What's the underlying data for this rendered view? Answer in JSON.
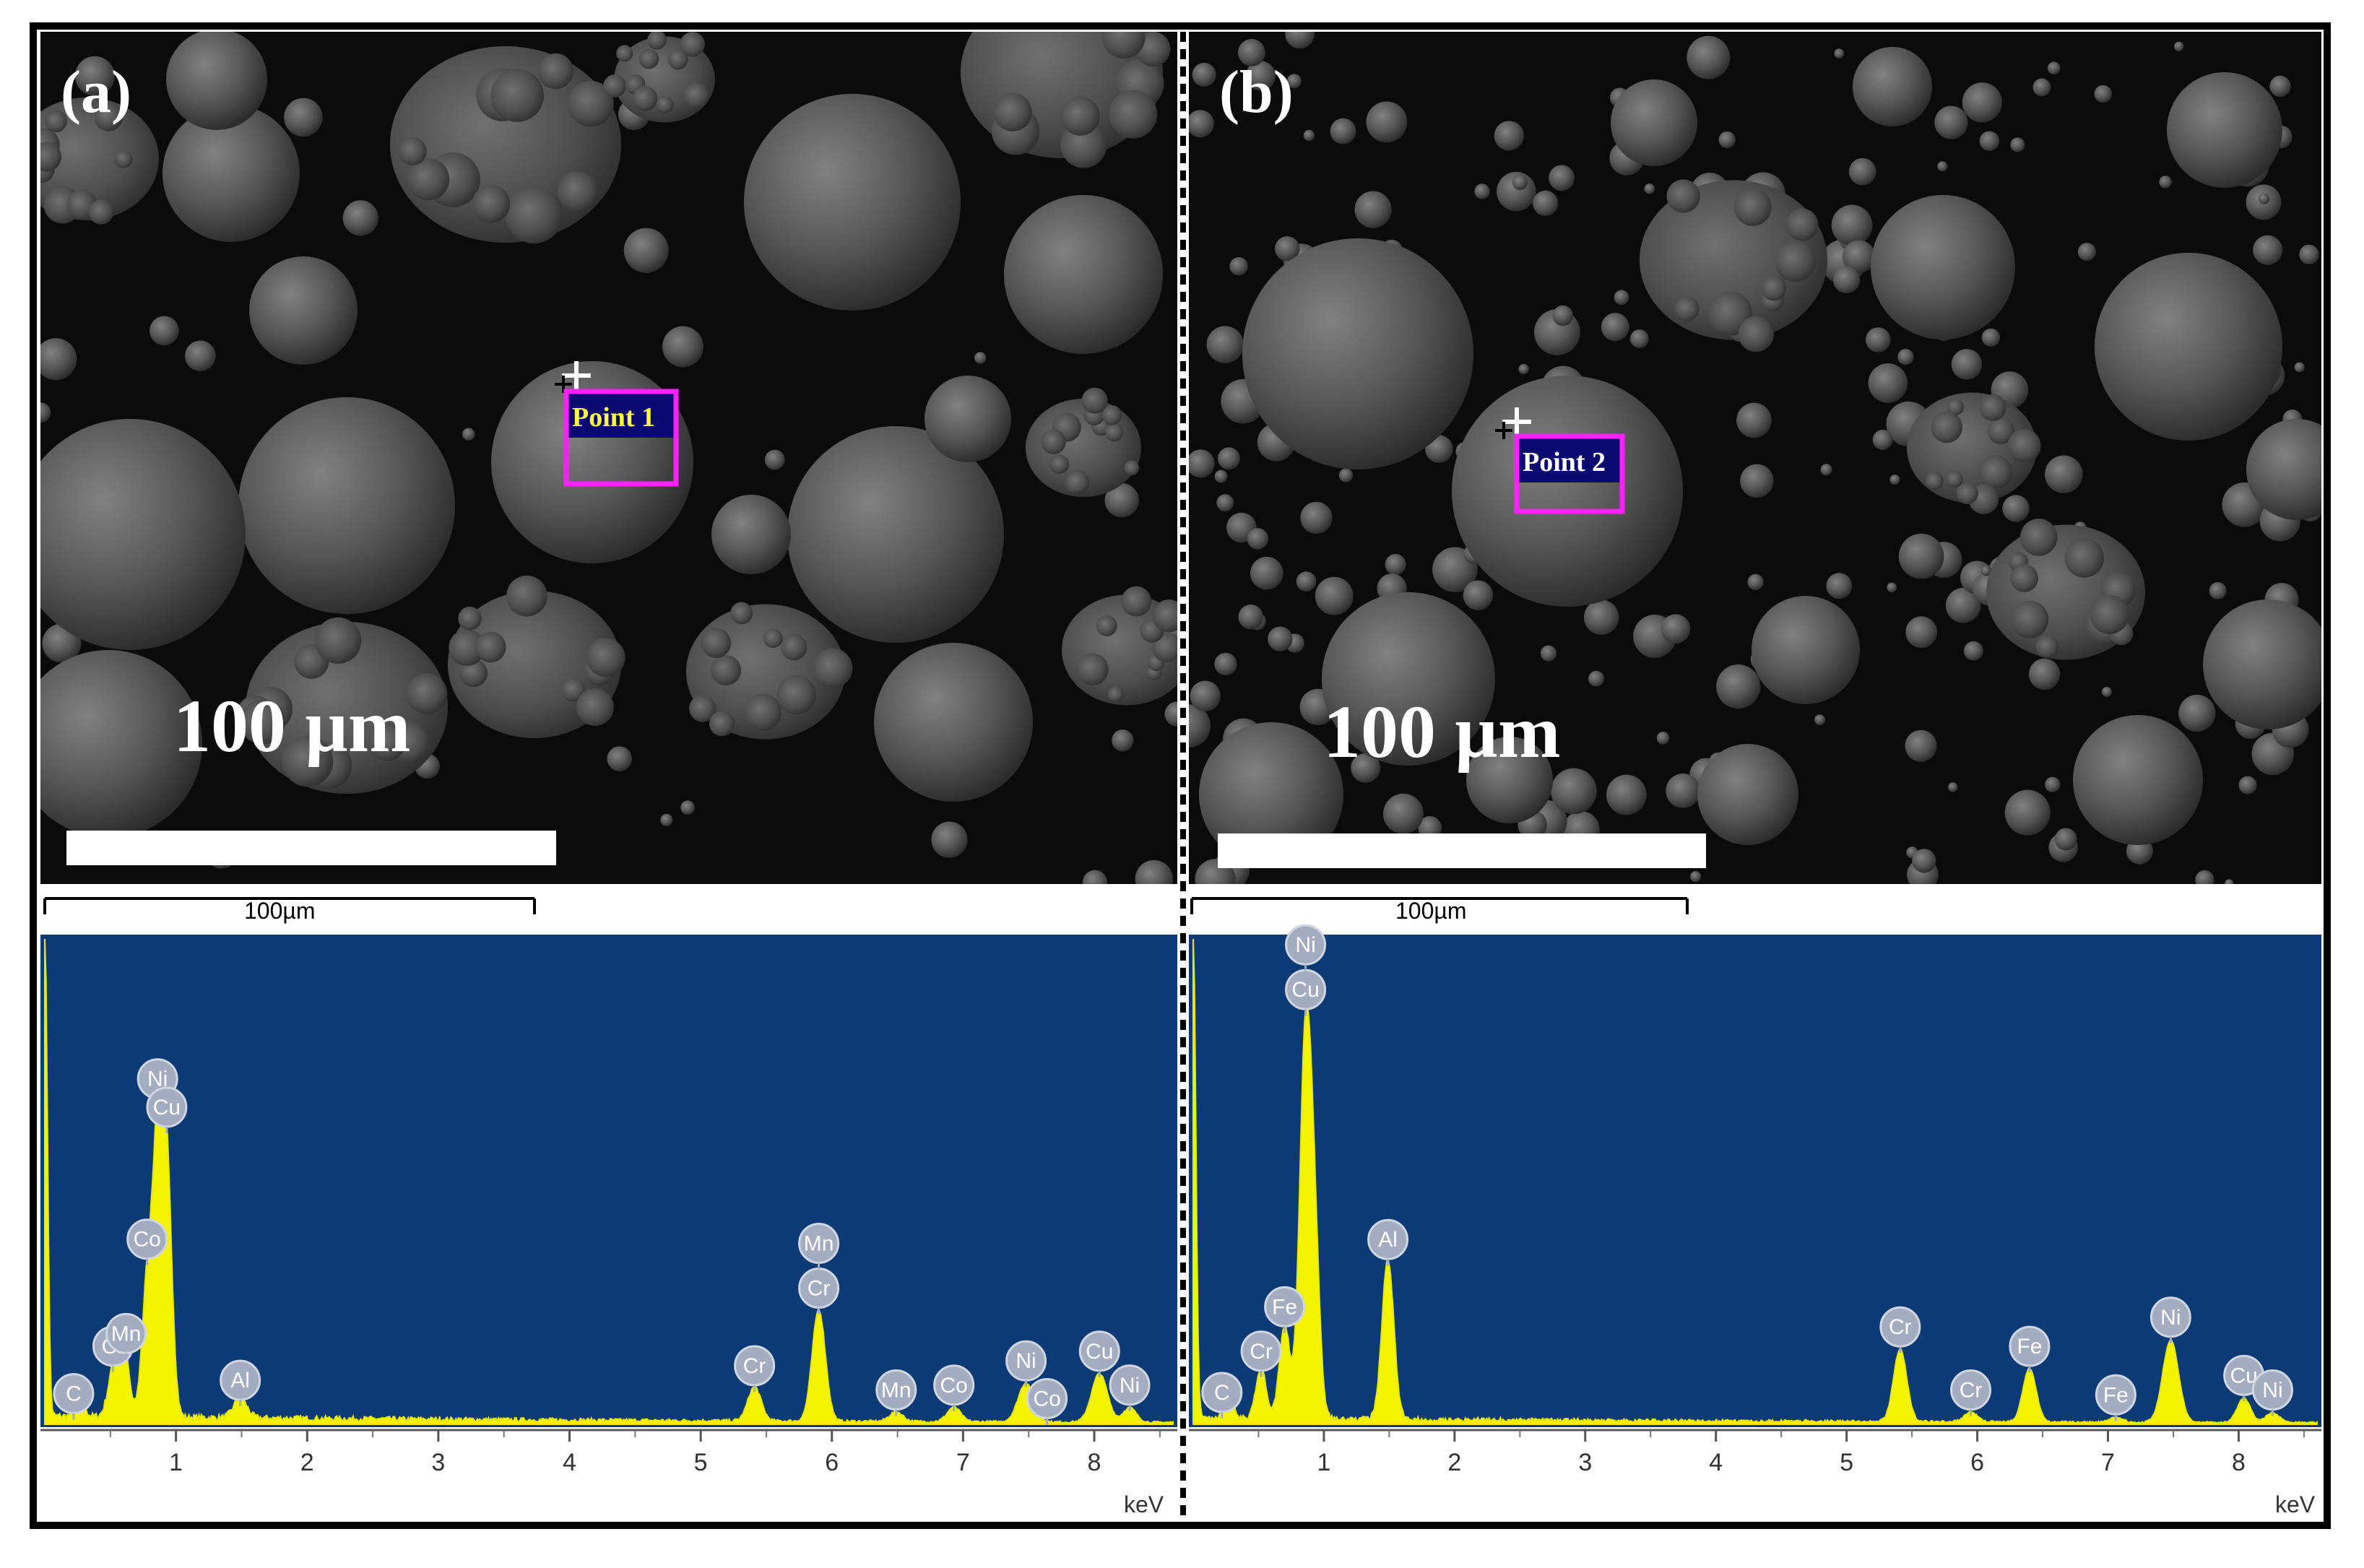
{
  "panels": [
    {
      "label": "(a)",
      "scale_text": "100 µm",
      "point_label": "Point 1",
      "ruler_text": "100µm",
      "axis_unit": "keV",
      "ticks": [
        "1",
        "2",
        "3",
        "4",
        "5",
        "6",
        "7",
        "8"
      ],
      "x_range": [
        0.0,
        8.6
      ],
      "spectrum": {
        "noise_level": 0.025,
        "peaks": [
          {
            "kev": 0.0,
            "height": 1.0,
            "width": 0.02
          },
          {
            "kev": 0.27,
            "height": 0.05,
            "width": 0.03
          },
          {
            "kev": 0.52,
            "height": 0.09,
            "width": 0.04
          },
          {
            "kev": 0.6,
            "height": 0.15,
            "width": 0.04
          },
          {
            "kev": 0.78,
            "height": 0.26,
            "width": 0.04
          },
          {
            "kev": 0.86,
            "height": 0.52,
            "width": 0.04
          },
          {
            "kev": 0.93,
            "height": 0.49,
            "width": 0.04
          },
          {
            "kev": 1.49,
            "height": 0.04,
            "width": 0.05
          },
          {
            "kev": 5.41,
            "height": 0.07,
            "width": 0.05
          },
          {
            "kev": 5.9,
            "height": 0.23,
            "width": 0.05
          },
          {
            "kev": 6.49,
            "height": 0.02,
            "width": 0.05
          },
          {
            "kev": 6.93,
            "height": 0.03,
            "width": 0.05
          },
          {
            "kev": 7.48,
            "height": 0.08,
            "width": 0.06
          },
          {
            "kev": 8.04,
            "height": 0.1,
            "width": 0.06
          },
          {
            "kev": 8.27,
            "height": 0.03,
            "width": 0.05
          }
        ],
        "labels": [
          {
            "text": "C",
            "kev": 0.22
          },
          {
            "text": "Cr",
            "kev": 0.52
          },
          {
            "text": "Co",
            "kev": 0.78
          },
          {
            "text": "Mn",
            "kev": 0.62
          },
          {
            "text": "Ni",
            "kev": 0.86
          },
          {
            "text": "Cu",
            "kev": 0.93
          },
          {
            "text": "Al",
            "kev": 1.49
          },
          {
            "text": "Cr",
            "kev": 5.41
          },
          {
            "text": "Cr",
            "kev": 5.9
          },
          {
            "text": "Mn",
            "kev": 5.9
          },
          {
            "text": "Mn",
            "kev": 6.49
          },
          {
            "text": "Co",
            "kev": 6.93
          },
          {
            "text": "Co",
            "kev": 7.64
          },
          {
            "text": "Ni",
            "kev": 7.48
          },
          {
            "text": "Ni",
            "kev": 8.27
          },
          {
            "text": "Cu",
            "kev": 8.04
          }
        ]
      }
    },
    {
      "label": "(b)",
      "scale_text": "100 µm",
      "point_label": "Point 2",
      "ruler_text": "100µm",
      "axis_unit": "keV",
      "ticks": [
        "1",
        "2",
        "3",
        "4",
        "5",
        "6",
        "7",
        "8"
      ],
      "x_range": [
        0.0,
        8.6
      ],
      "spectrum": {
        "noise_level": 0.02,
        "peaks": [
          {
            "kev": 0.0,
            "height": 1.0,
            "width": 0.02
          },
          {
            "kev": 0.27,
            "height": 0.06,
            "width": 0.03
          },
          {
            "kev": 0.52,
            "height": 0.1,
            "width": 0.04
          },
          {
            "kev": 0.7,
            "height": 0.19,
            "width": 0.04
          },
          {
            "kev": 0.86,
            "height": 0.78,
            "width": 0.045
          },
          {
            "kev": 0.93,
            "height": 0.3,
            "width": 0.04
          },
          {
            "kev": 1.49,
            "height": 0.33,
            "width": 0.045
          },
          {
            "kev": 5.41,
            "height": 0.15,
            "width": 0.05
          },
          {
            "kev": 5.95,
            "height": 0.02,
            "width": 0.05
          },
          {
            "kev": 6.4,
            "height": 0.11,
            "width": 0.05
          },
          {
            "kev": 7.06,
            "height": 0.01,
            "width": 0.05
          },
          {
            "kev": 7.48,
            "height": 0.17,
            "width": 0.06
          },
          {
            "kev": 8.04,
            "height": 0.05,
            "width": 0.05
          },
          {
            "kev": 8.26,
            "height": 0.02,
            "width": 0.05
          }
        ],
        "labels": [
          {
            "text": "C",
            "kev": 0.22
          },
          {
            "text": "Cr",
            "kev": 0.52
          },
          {
            "text": "Fe",
            "kev": 0.7
          },
          {
            "text": "Cu",
            "kev": 0.86
          },
          {
            "text": "Ni",
            "kev": 0.86
          },
          {
            "text": "Al",
            "kev": 1.49
          },
          {
            "text": "Cr",
            "kev": 5.41
          },
          {
            "text": "Cr",
            "kev": 5.95
          },
          {
            "text": "Fe",
            "kev": 6.4
          },
          {
            "text": "Fe",
            "kev": 7.06
          },
          {
            "text": "Ni",
            "kev": 7.48
          },
          {
            "text": "Cu",
            "kev": 8.04
          },
          {
            "text": "Ni",
            "kev": 8.26
          }
        ]
      }
    }
  ]
}
